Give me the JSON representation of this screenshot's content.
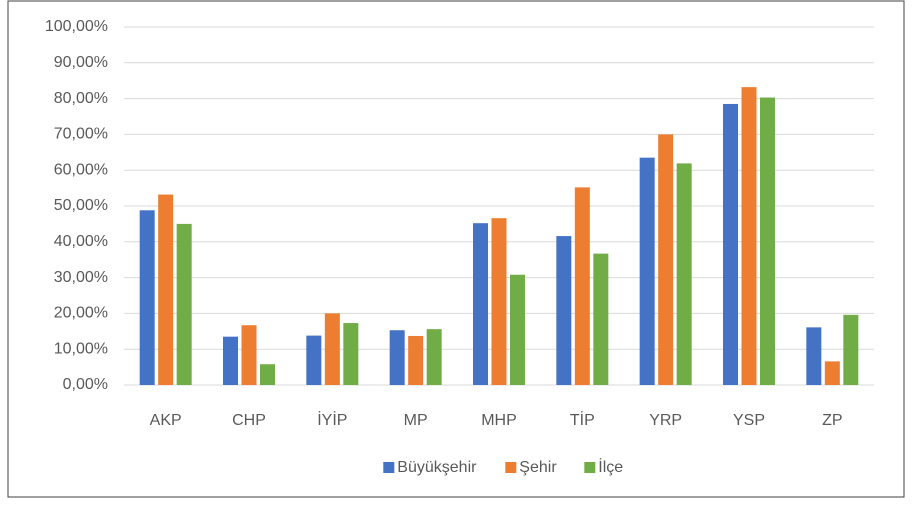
{
  "chart_data": {
    "type": "bar",
    "categories": [
      "AKP",
      "CHP",
      "İYİP",
      "MP",
      "MHP",
      "TİP",
      "YRP",
      "YSP",
      "ZP"
    ],
    "series": [
      {
        "name": "Büyükşehir",
        "color": "#4472c4",
        "values": [
          48.8,
          13.5,
          13.8,
          15.3,
          45.2,
          41.6,
          63.5,
          78.5,
          16.1
        ]
      },
      {
        "name": "Şehir",
        "color": "#ed7d31",
        "values": [
          53.2,
          16.7,
          20.0,
          13.7,
          46.6,
          55.2,
          70.0,
          83.2,
          6.6
        ]
      },
      {
        "name": "İlçe",
        "color": "#70ad47",
        "values": [
          45.0,
          5.8,
          17.3,
          15.6,
          30.8,
          36.7,
          61.9,
          80.3,
          19.6
        ]
      }
    ],
    "ylim": [
      0,
      100
    ],
    "yticks": [
      {
        "value": 0,
        "label": "0,00%"
      },
      {
        "value": 10,
        "label": "10,00%"
      },
      {
        "value": 20,
        "label": "20,00%"
      },
      {
        "value": 30,
        "label": "30,00%"
      },
      {
        "value": 40,
        "label": "40,00%"
      },
      {
        "value": 50,
        "label": "50,00%"
      },
      {
        "value": 60,
        "label": "60,00%"
      },
      {
        "value": 70,
        "label": "70,00%"
      },
      {
        "value": 80,
        "label": "80,00%"
      },
      {
        "value": 90,
        "label": "90,00%"
      },
      {
        "value": 100,
        "label": "100,00%"
      }
    ],
    "grid": true,
    "legend": "bottom"
  }
}
